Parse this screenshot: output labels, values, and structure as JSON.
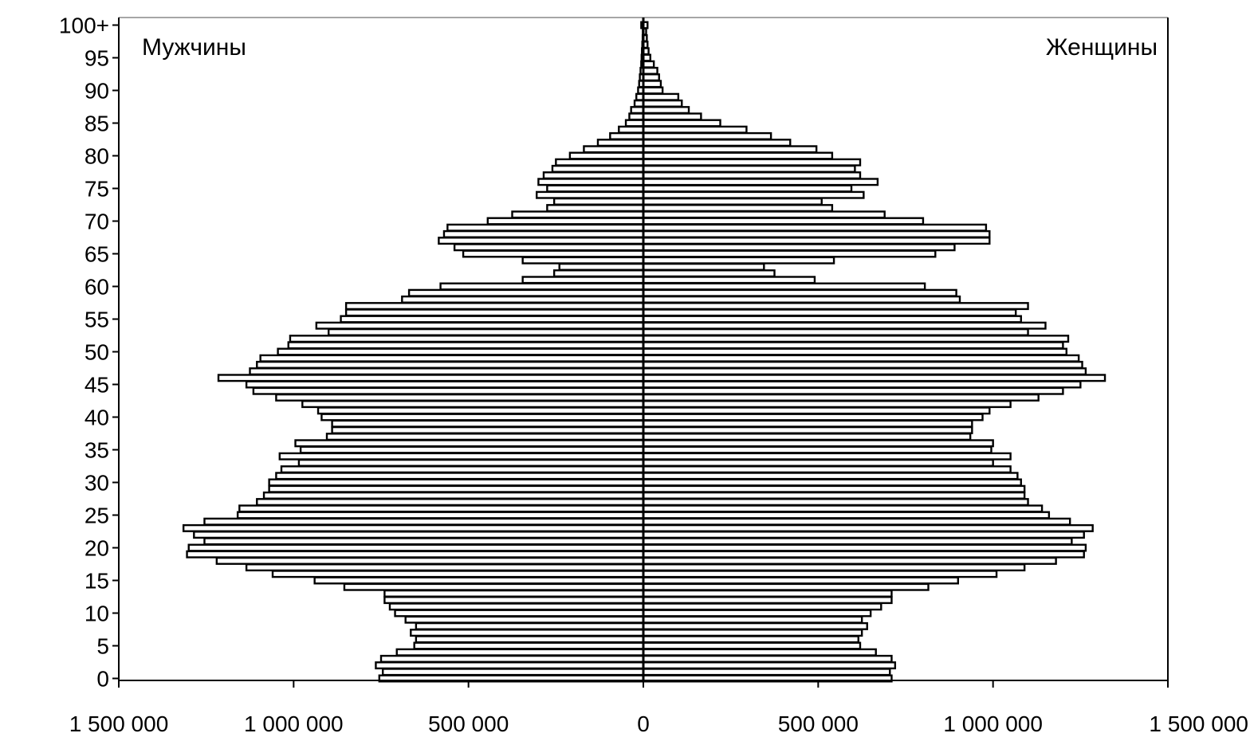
{
  "chart_data": {
    "type": "bar",
    "orientation": "horizontal-population-pyramid",
    "title": "",
    "xlabel": "",
    "ylabel": "",
    "left_series_label": "Мужчины",
    "right_series_label": "Женщины",
    "xlim": [
      -1500000,
      1500000
    ],
    "ylim": [
      0,
      100
    ],
    "x_tick_values": [
      -1500000,
      -1000000,
      -500000,
      0,
      500000,
      1000000,
      1500000
    ],
    "x_tick_labels": [
      "1 500 000",
      "1 000 000",
      "500 000",
      "0",
      "500 000",
      "1 000 000",
      "1 500 000"
    ],
    "y_tick_values": [
      0,
      5,
      10,
      15,
      20,
      25,
      30,
      35,
      40,
      45,
      50,
      55,
      60,
      65,
      70,
      75,
      80,
      85,
      90,
      95,
      100
    ],
    "y_tick_labels": [
      "0",
      "5",
      "10",
      "15",
      "20",
      "25",
      "30",
      "35",
      "40",
      "45",
      "50",
      "55",
      "60",
      "65",
      "70",
      "75",
      "80",
      "85",
      "90",
      "95",
      "100+"
    ],
    "grid": false,
    "legend": "none",
    "ages": [
      0,
      1,
      2,
      3,
      4,
      5,
      6,
      7,
      8,
      9,
      10,
      11,
      12,
      13,
      14,
      15,
      16,
      17,
      18,
      19,
      20,
      21,
      22,
      23,
      24,
      25,
      26,
      27,
      28,
      29,
      30,
      31,
      32,
      33,
      34,
      35,
      36,
      37,
      38,
      39,
      40,
      41,
      42,
      43,
      44,
      45,
      46,
      47,
      48,
      49,
      50,
      51,
      52,
      53,
      54,
      55,
      56,
      57,
      58,
      59,
      60,
      61,
      62,
      63,
      64,
      65,
      66,
      67,
      68,
      69,
      70,
      71,
      72,
      73,
      74,
      75,
      76,
      77,
      78,
      79,
      80,
      81,
      82,
      83,
      84,
      85,
      86,
      87,
      88,
      89,
      90,
      91,
      92,
      93,
      94,
      95,
      96,
      97,
      98,
      99,
      100
    ],
    "series": [
      {
        "name": "Мужчины",
        "side": "left",
        "values": [
          755000,
          745000,
          765000,
          750000,
          705000,
          655000,
          650000,
          665000,
          650000,
          680000,
          710000,
          725000,
          740000,
          740000,
          855000,
          940000,
          1060000,
          1135000,
          1220000,
          1305000,
          1300000,
          1255000,
          1285000,
          1315000,
          1255000,
          1160000,
          1155000,
          1105000,
          1085000,
          1070000,
          1070000,
          1050000,
          1035000,
          985000,
          1040000,
          980000,
          995000,
          905000,
          890000,
          890000,
          920000,
          930000,
          975000,
          1050000,
          1115000,
          1135000,
          1215000,
          1125000,
          1105000,
          1095000,
          1045000,
          1015000,
          1010000,
          900000,
          935000,
          865000,
          850000,
          850000,
          690000,
          670000,
          580000,
          345000,
          255000,
          240000,
          345000,
          515000,
          540000,
          585000,
          570000,
          560000,
          445000,
          375000,
          275000,
          255000,
          305000,
          275000,
          300000,
          285000,
          260000,
          250000,
          210000,
          170000,
          130000,
          95000,
          70000,
          50000,
          40000,
          35000,
          25000,
          20000,
          15000,
          12000,
          10000,
          8000,
          6000,
          5000,
          4000,
          3000,
          2000,
          1500,
          6000
        ]
      },
      {
        "name": "Женщины",
        "side": "right",
        "values": [
          710000,
          705000,
          720000,
          710000,
          665000,
          620000,
          615000,
          625000,
          640000,
          625000,
          650000,
          680000,
          710000,
          710000,
          815000,
          900000,
          1010000,
          1090000,
          1180000,
          1260000,
          1265000,
          1225000,
          1260000,
          1285000,
          1220000,
          1160000,
          1140000,
          1100000,
          1090000,
          1090000,
          1080000,
          1070000,
          1050000,
          1000000,
          1050000,
          995000,
          1000000,
          935000,
          940000,
          940000,
          970000,
          990000,
          1050000,
          1130000,
          1200000,
          1250000,
          1320000,
          1265000,
          1255000,
          1245000,
          1210000,
          1200000,
          1215000,
          1100000,
          1150000,
          1080000,
          1065000,
          1100000,
          905000,
          895000,
          805000,
          490000,
          375000,
          345000,
          545000,
          835000,
          890000,
          990000,
          990000,
          980000,
          800000,
          690000,
          540000,
          510000,
          630000,
          595000,
          670000,
          620000,
          605000,
          620000,
          540000,
          495000,
          420000,
          365000,
          295000,
          220000,
          165000,
          130000,
          110000,
          100000,
          55000,
          50000,
          45000,
          40000,
          30000,
          20000,
          15000,
          12000,
          10000,
          8000,
          12000
        ]
      }
    ]
  }
}
